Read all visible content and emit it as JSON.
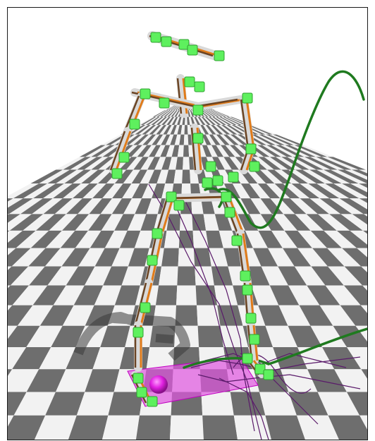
{
  "scene": {
    "kind": "3d-physics-viewport",
    "background": "#ffffff",
    "floor": {
      "pattern": "checkerboard",
      "dark": "#6e6e6e",
      "light": "#f2f2f2"
    },
    "skeleton": {
      "segment_colors": [
        "#d9d9d9",
        "#e07b1a",
        "#6b4423",
        "#8a8ef0"
      ],
      "joint_marker_color": "#5ef05e",
      "contact_box_color": "#e055e0"
    },
    "trajectories": {
      "green": "#1f7a1f",
      "purple": "#5a1a6a"
    }
  }
}
